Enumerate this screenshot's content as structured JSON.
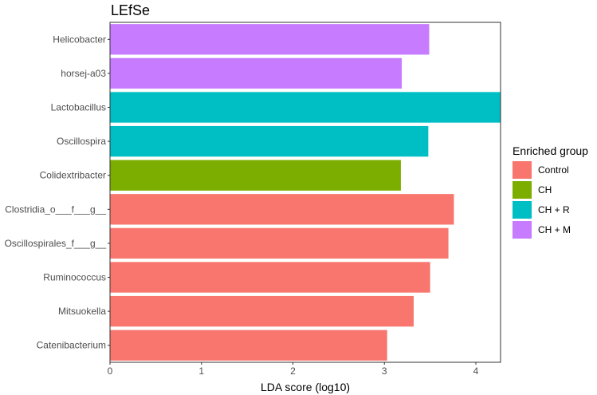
{
  "chart_data": {
    "type": "bar",
    "orientation": "horizontal",
    "title": "LEfSe",
    "xlabel": "LDA score (log10)",
    "ylabel": "",
    "xlim": [
      0,
      4.27
    ],
    "xticks": [
      0,
      1,
      2,
      3,
      4
    ],
    "grid": false,
    "legend": {
      "title": "Enriched group",
      "placement": "right",
      "entries": [
        {
          "name": "Control",
          "color": "#F8766D"
        },
        {
          "name": "CH",
          "color": "#7CAE00"
        },
        {
          "name": "CH + R",
          "color": "#00BFC4"
        },
        {
          "name": "CH + M",
          "color": "#C77CFF"
        }
      ]
    },
    "bars": [
      {
        "category": "Helicobacter",
        "value": 3.49,
        "group": "CH + M"
      },
      {
        "category": "horsej-a03",
        "value": 3.19,
        "group": "CH + M"
      },
      {
        "category": "Lactobacillus",
        "value": 4.27,
        "group": "CH + R"
      },
      {
        "category": "Oscillospira",
        "value": 3.48,
        "group": "CH + R"
      },
      {
        "category": "Colidextribacter",
        "value": 3.18,
        "group": "CH"
      },
      {
        "category": "Clostridia_o___f___g__",
        "value": 3.76,
        "group": "Control"
      },
      {
        "category": "Oscillospirales_f___g__",
        "value": 3.7,
        "group": "Control"
      },
      {
        "category": "Ruminococcus",
        "value": 3.5,
        "group": "Control"
      },
      {
        "category": "Mitsuokella",
        "value": 3.32,
        "group": "Control"
      },
      {
        "category": "Catenibacterium",
        "value": 3.03,
        "group": "Control"
      }
    ]
  }
}
